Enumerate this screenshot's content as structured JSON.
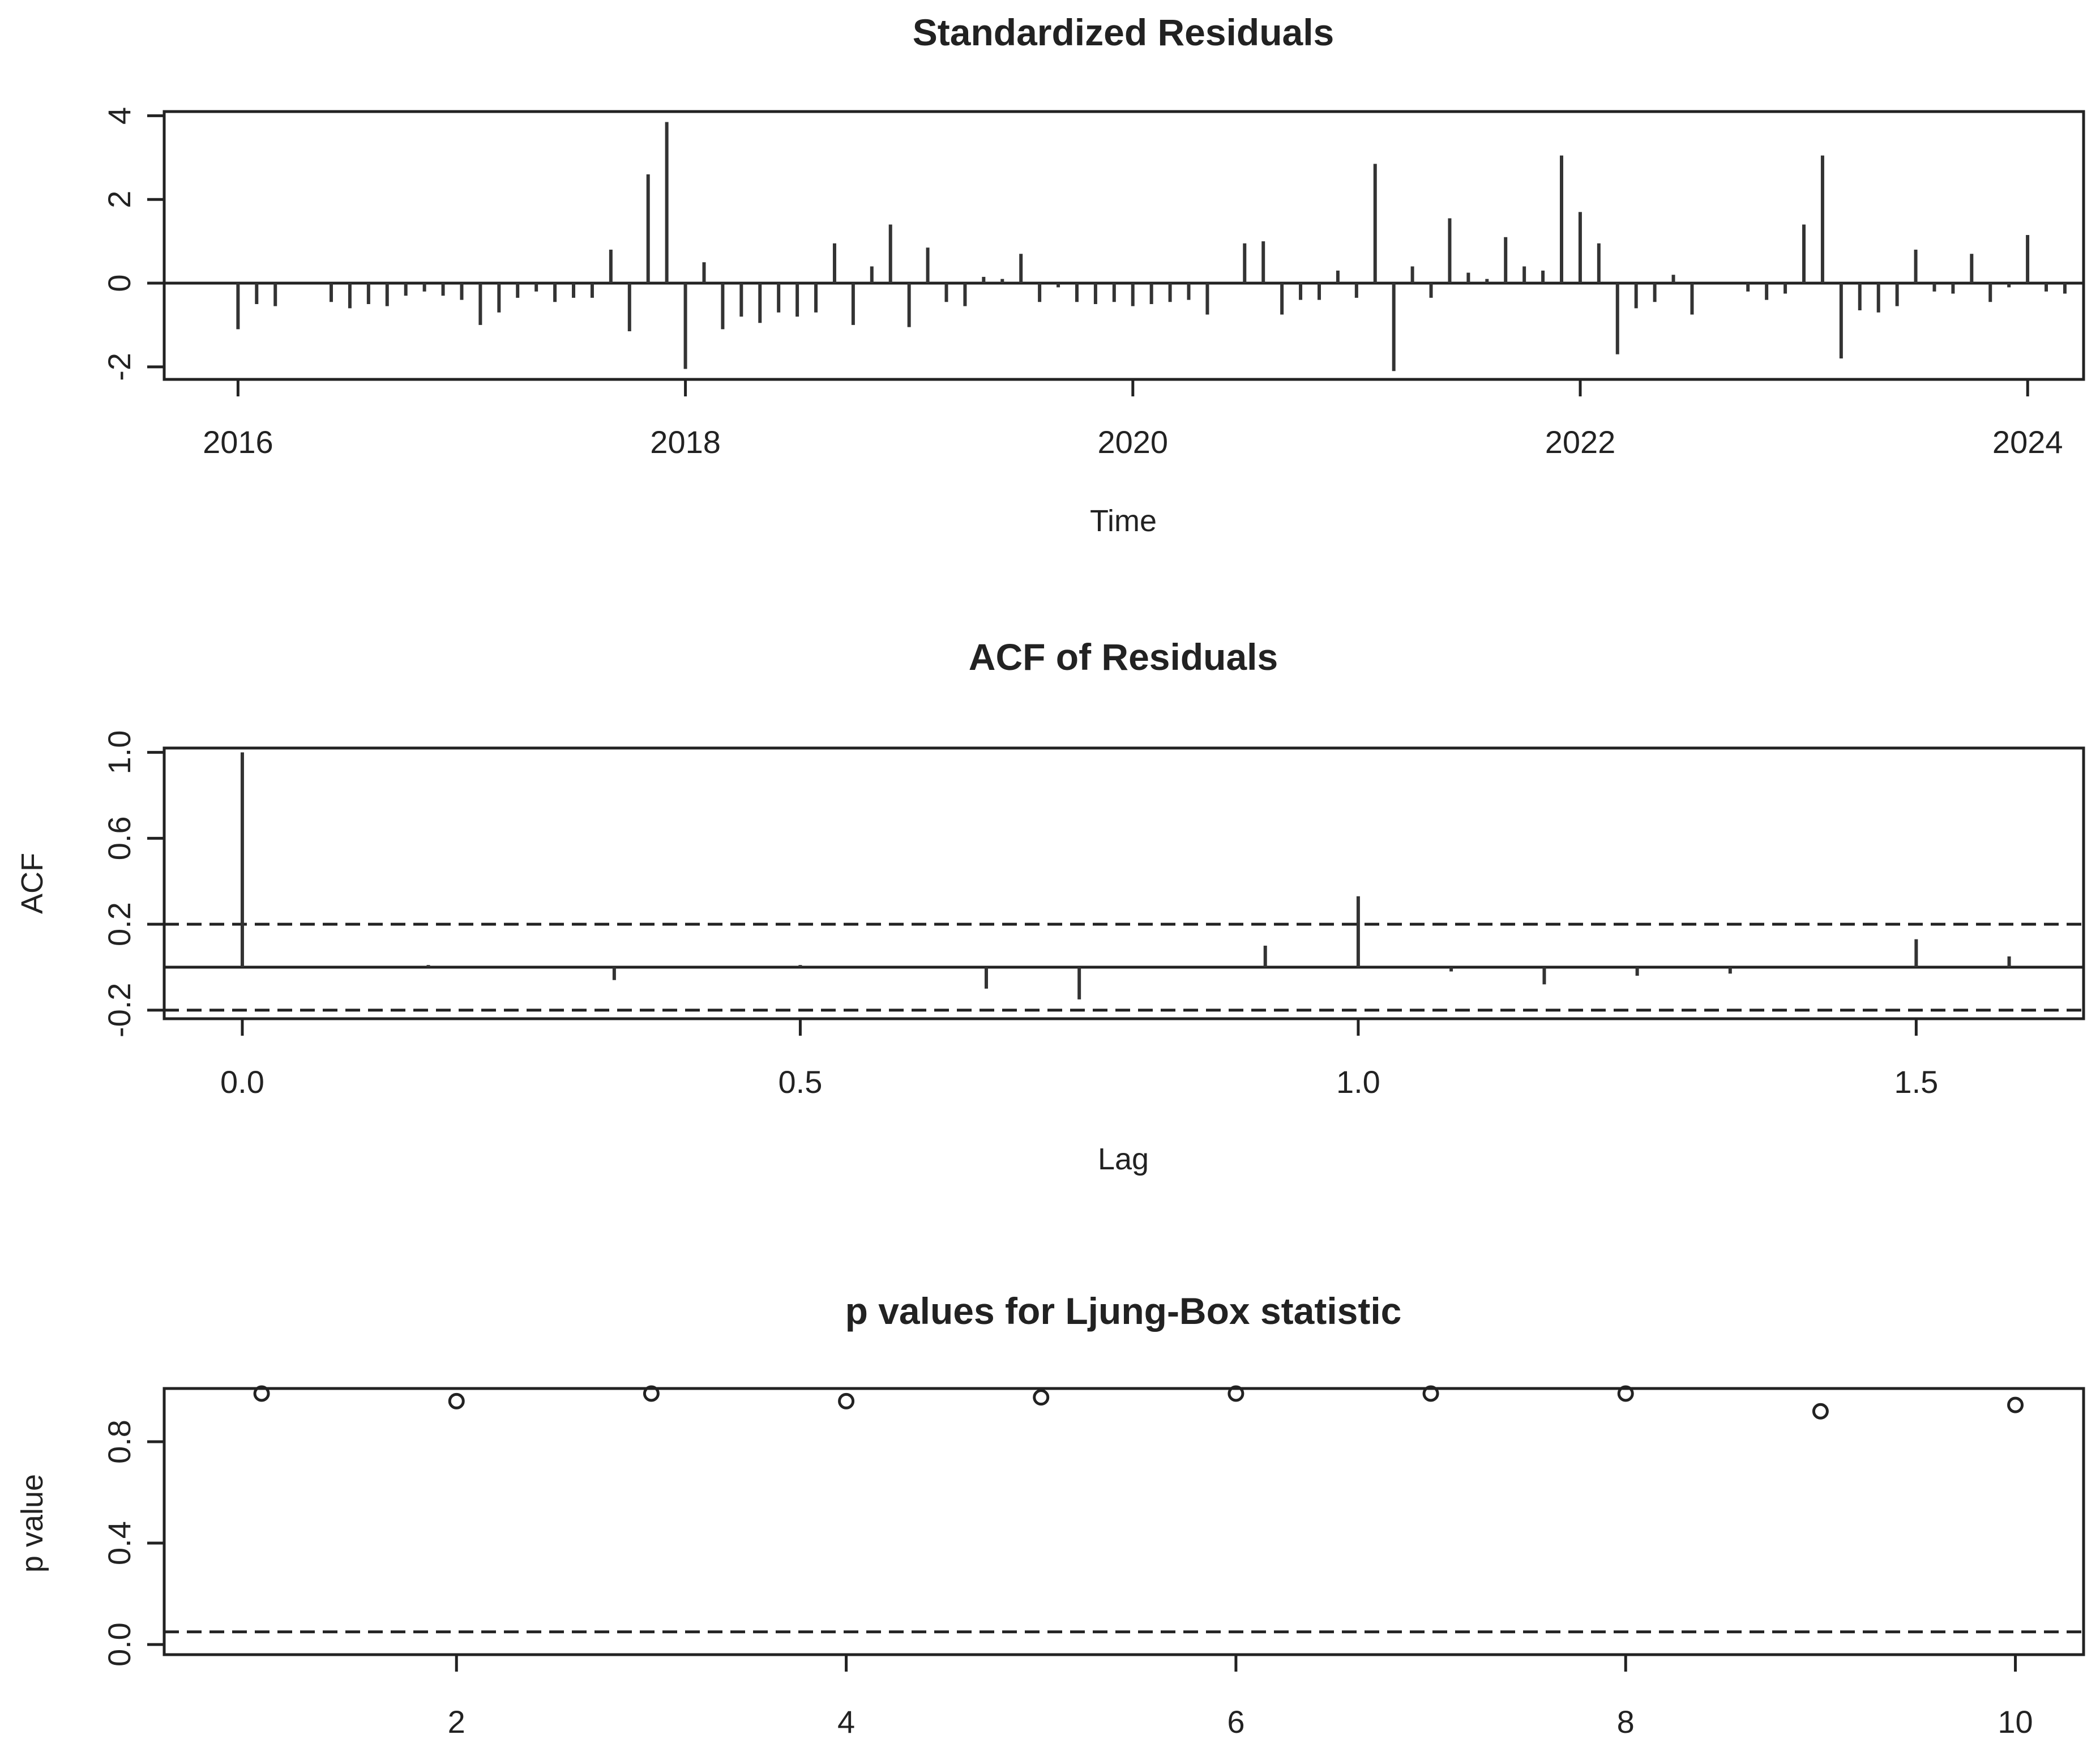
{
  "colors": {
    "background": "#ffffff",
    "ink": "#222222",
    "bar": "#333333"
  },
  "chart_data": [
    {
      "type": "bar",
      "title": "Standardized Residuals",
      "xlabel": "Time",
      "ylabel": "",
      "xlim": [
        2015.67,
        2024.25
      ],
      "ylim": [
        -2.3,
        4.1
      ],
      "xticks": [
        2016,
        2018,
        2020,
        2022,
        2024
      ],
      "xtick_labels": [
        "2016",
        "2018",
        "2020",
        "2022",
        "2024"
      ],
      "yticks": [
        -2,
        0,
        2,
        4
      ],
      "ytick_labels": [
        "-2",
        "0",
        "2",
        "4"
      ],
      "x_start": 2016,
      "x_step": 0.08333,
      "values": [
        -1.1,
        -0.5,
        -0.55,
        0,
        0,
        -0.45,
        -0.6,
        -0.5,
        -0.55,
        -0.3,
        -0.2,
        -0.3,
        -0.4,
        -1.0,
        -0.7,
        -0.35,
        -0.2,
        -0.45,
        -0.35,
        -0.35,
        0.8,
        -1.15,
        2.6,
        3.85,
        -2.05,
        0.5,
        -1.1,
        -0.8,
        -0.95,
        -0.7,
        -0.8,
        -0.7,
        0.95,
        -1.0,
        0.4,
        1.4,
        -1.05,
        0.85,
        -0.45,
        -0.55,
        0.15,
        0.1,
        0.7,
        -0.45,
        -0.1,
        -0.45,
        -0.5,
        -0.45,
        -0.55,
        -0.5,
        -0.45,
        -0.4,
        -0.75,
        0,
        0.95,
        1.0,
        -0.75,
        -0.4,
        -0.4,
        0.3,
        -0.35,
        2.85,
        -2.1,
        0.4,
        -0.35,
        1.55,
        0.25,
        0.1,
        1.1,
        0.4,
        0.3,
        3.05,
        1.7,
        0.95,
        -1.7,
        -0.6,
        -0.45,
        0.2,
        -0.75,
        0,
        0,
        -0.2,
        -0.4,
        -0.25,
        1.4,
        3.05,
        -1.8,
        -0.65,
        -0.7,
        -0.55,
        0.8,
        -0.2,
        -0.25,
        0.7,
        -0.45,
        -0.1,
        1.15,
        -0.2,
        -0.25
      ]
    },
    {
      "type": "bar",
      "title": "ACF of Residuals",
      "xlabel": "Lag",
      "ylabel": "ACF",
      "xlim": [
        -0.07,
        1.65
      ],
      "ylim": [
        -0.24,
        1.02
      ],
      "xticks": [
        0.0,
        0.5,
        1.0,
        1.5
      ],
      "xtick_labels": [
        "0.0",
        "0.5",
        "1.0",
        "1.5"
      ],
      "yticks": [
        -0.2,
        0.2,
        0.6,
        1.0
      ],
      "ytick_labels": [
        "-0.2",
        "0.2",
        "0.6",
        "1.0"
      ],
      "confidence_band": [
        -0.2,
        0.2
      ],
      "lags": [
        0.0,
        0.0833,
        0.1667,
        0.25,
        0.3333,
        0.4167,
        0.5,
        0.5833,
        0.6667,
        0.75,
        0.8333,
        0.9167,
        1.0,
        1.0833,
        1.1667,
        1.25,
        1.3333,
        1.4167,
        1.5,
        1.5833
      ],
      "values": [
        1.0,
        0.0,
        0.01,
        0.0,
        -0.06,
        0.0,
        0.01,
        0.0,
        -0.1,
        -0.15,
        0.0,
        0.1,
        0.33,
        -0.02,
        -0.08,
        -0.04,
        -0.03,
        0.0,
        0.13,
        0.05
      ]
    },
    {
      "type": "scatter",
      "title": "p values for Ljung-Box statistic",
      "xlabel": "",
      "ylabel": "p value",
      "xlim": [
        0.5,
        10.35
      ],
      "ylim": [
        -0.04,
        1.01
      ],
      "xticks": [
        2,
        4,
        6,
        8,
        10
      ],
      "xtick_labels": [
        "2",
        "4",
        "6",
        "8",
        "10"
      ],
      "yticks": [
        0.0,
        0.4,
        0.8
      ],
      "ytick_labels": [
        "0.0",
        "0.4",
        "0.8"
      ],
      "reference_line": 0.05,
      "x": [
        1,
        2,
        3,
        4,
        5,
        6,
        7,
        8,
        9,
        10
      ],
      "y": [
        0.99,
        0.96,
        0.99,
        0.96,
        0.975,
        0.99,
        0.99,
        0.99,
        0.92,
        0.945
      ]
    }
  ]
}
